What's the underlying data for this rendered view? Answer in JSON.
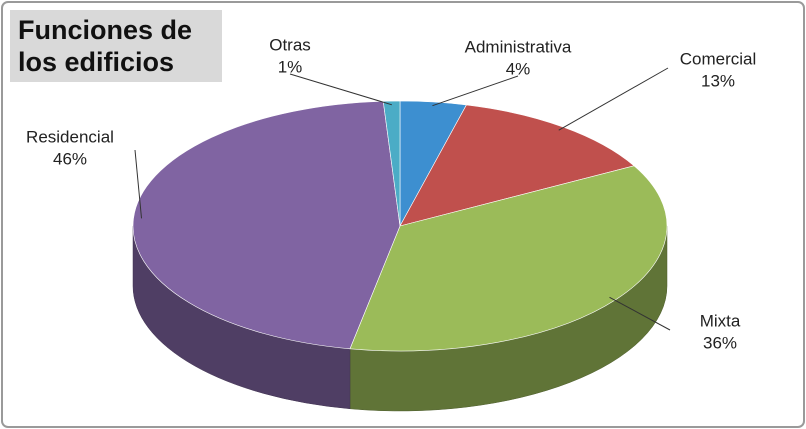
{
  "chart_data": {
    "type": "pie",
    "title": "Funciones de los edificios",
    "categories": [
      "Administrativa",
      "Comercial",
      "Mixta",
      "Residencial",
      "Otras"
    ],
    "values": [
      4,
      13,
      36,
      46,
      1
    ],
    "value_labels": [
      "4%",
      "13%",
      "36%",
      "46%",
      "1%"
    ],
    "colors": [
      "#3d8fd0",
      "#c0504d",
      "#9bbb59",
      "#8064a2",
      "#4bacc6"
    ]
  }
}
